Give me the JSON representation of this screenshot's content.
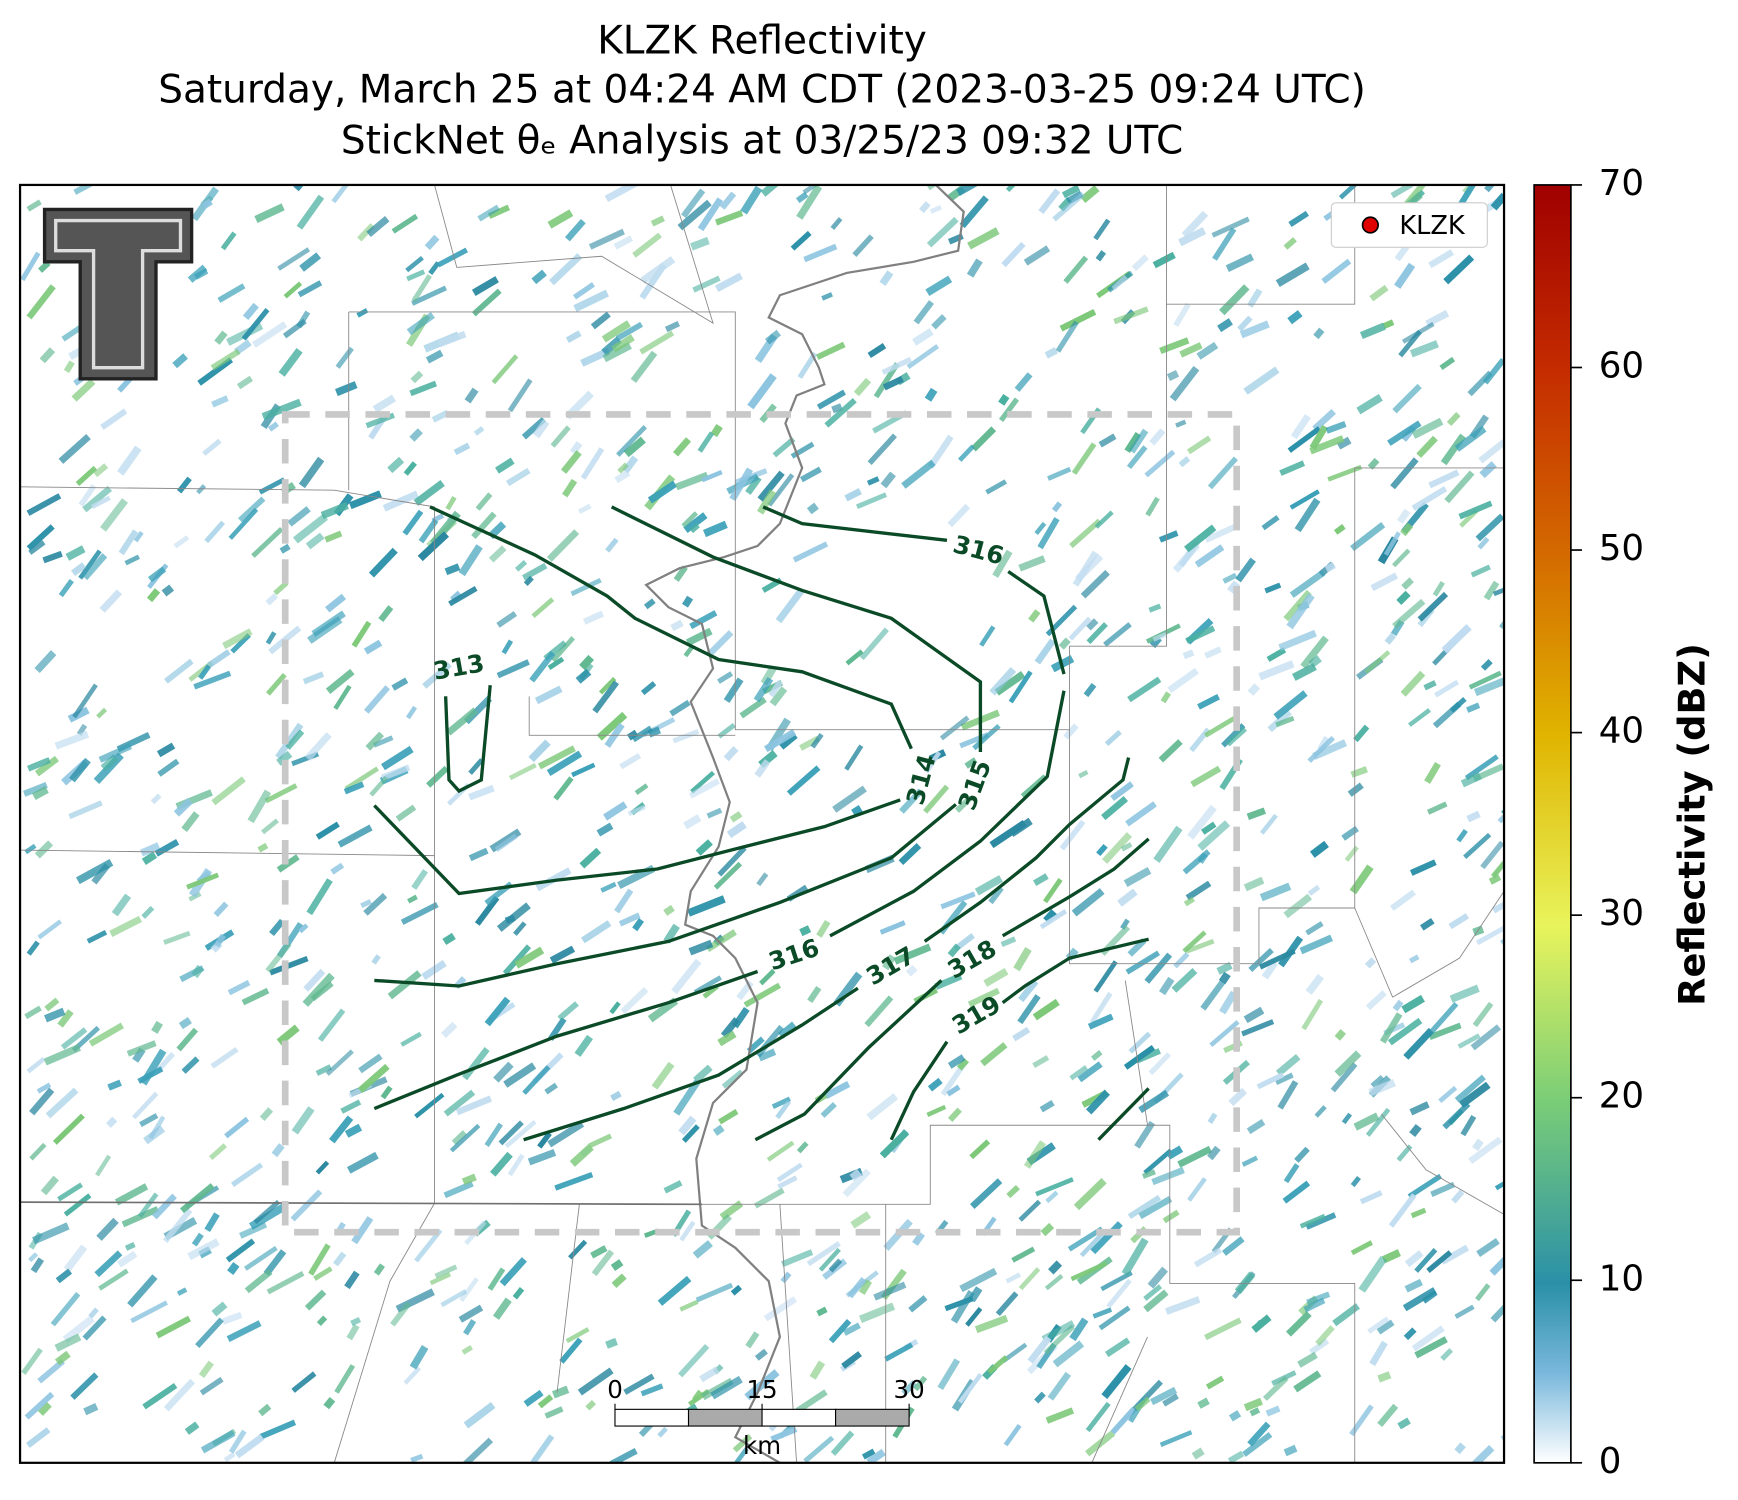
{
  "title_lines": [
    "KLZK Reflectivity",
    "Saturday, March 25 at 04:24 AM CDT (2023-03-25 09:24 UTC)",
    "StickNet θₑ Analysis at 03/25/23 09:32 UTC"
  ],
  "legend": {
    "label": "KLZK",
    "color": "#e00000"
  },
  "colorbar": {
    "label": "Reflectivity (dBZ)",
    "lim": [
      0,
      70
    ],
    "ticks": [
      0,
      10,
      20,
      30,
      40,
      50,
      60,
      70
    ]
  },
  "contours": {
    "levels": [
      313,
      314,
      315,
      316,
      316,
      317,
      318,
      319
    ],
    "color": "#0b4a26"
  },
  "scale_bar": {
    "ticks": [
      0,
      15,
      30
    ],
    "unit": "km"
  }
}
